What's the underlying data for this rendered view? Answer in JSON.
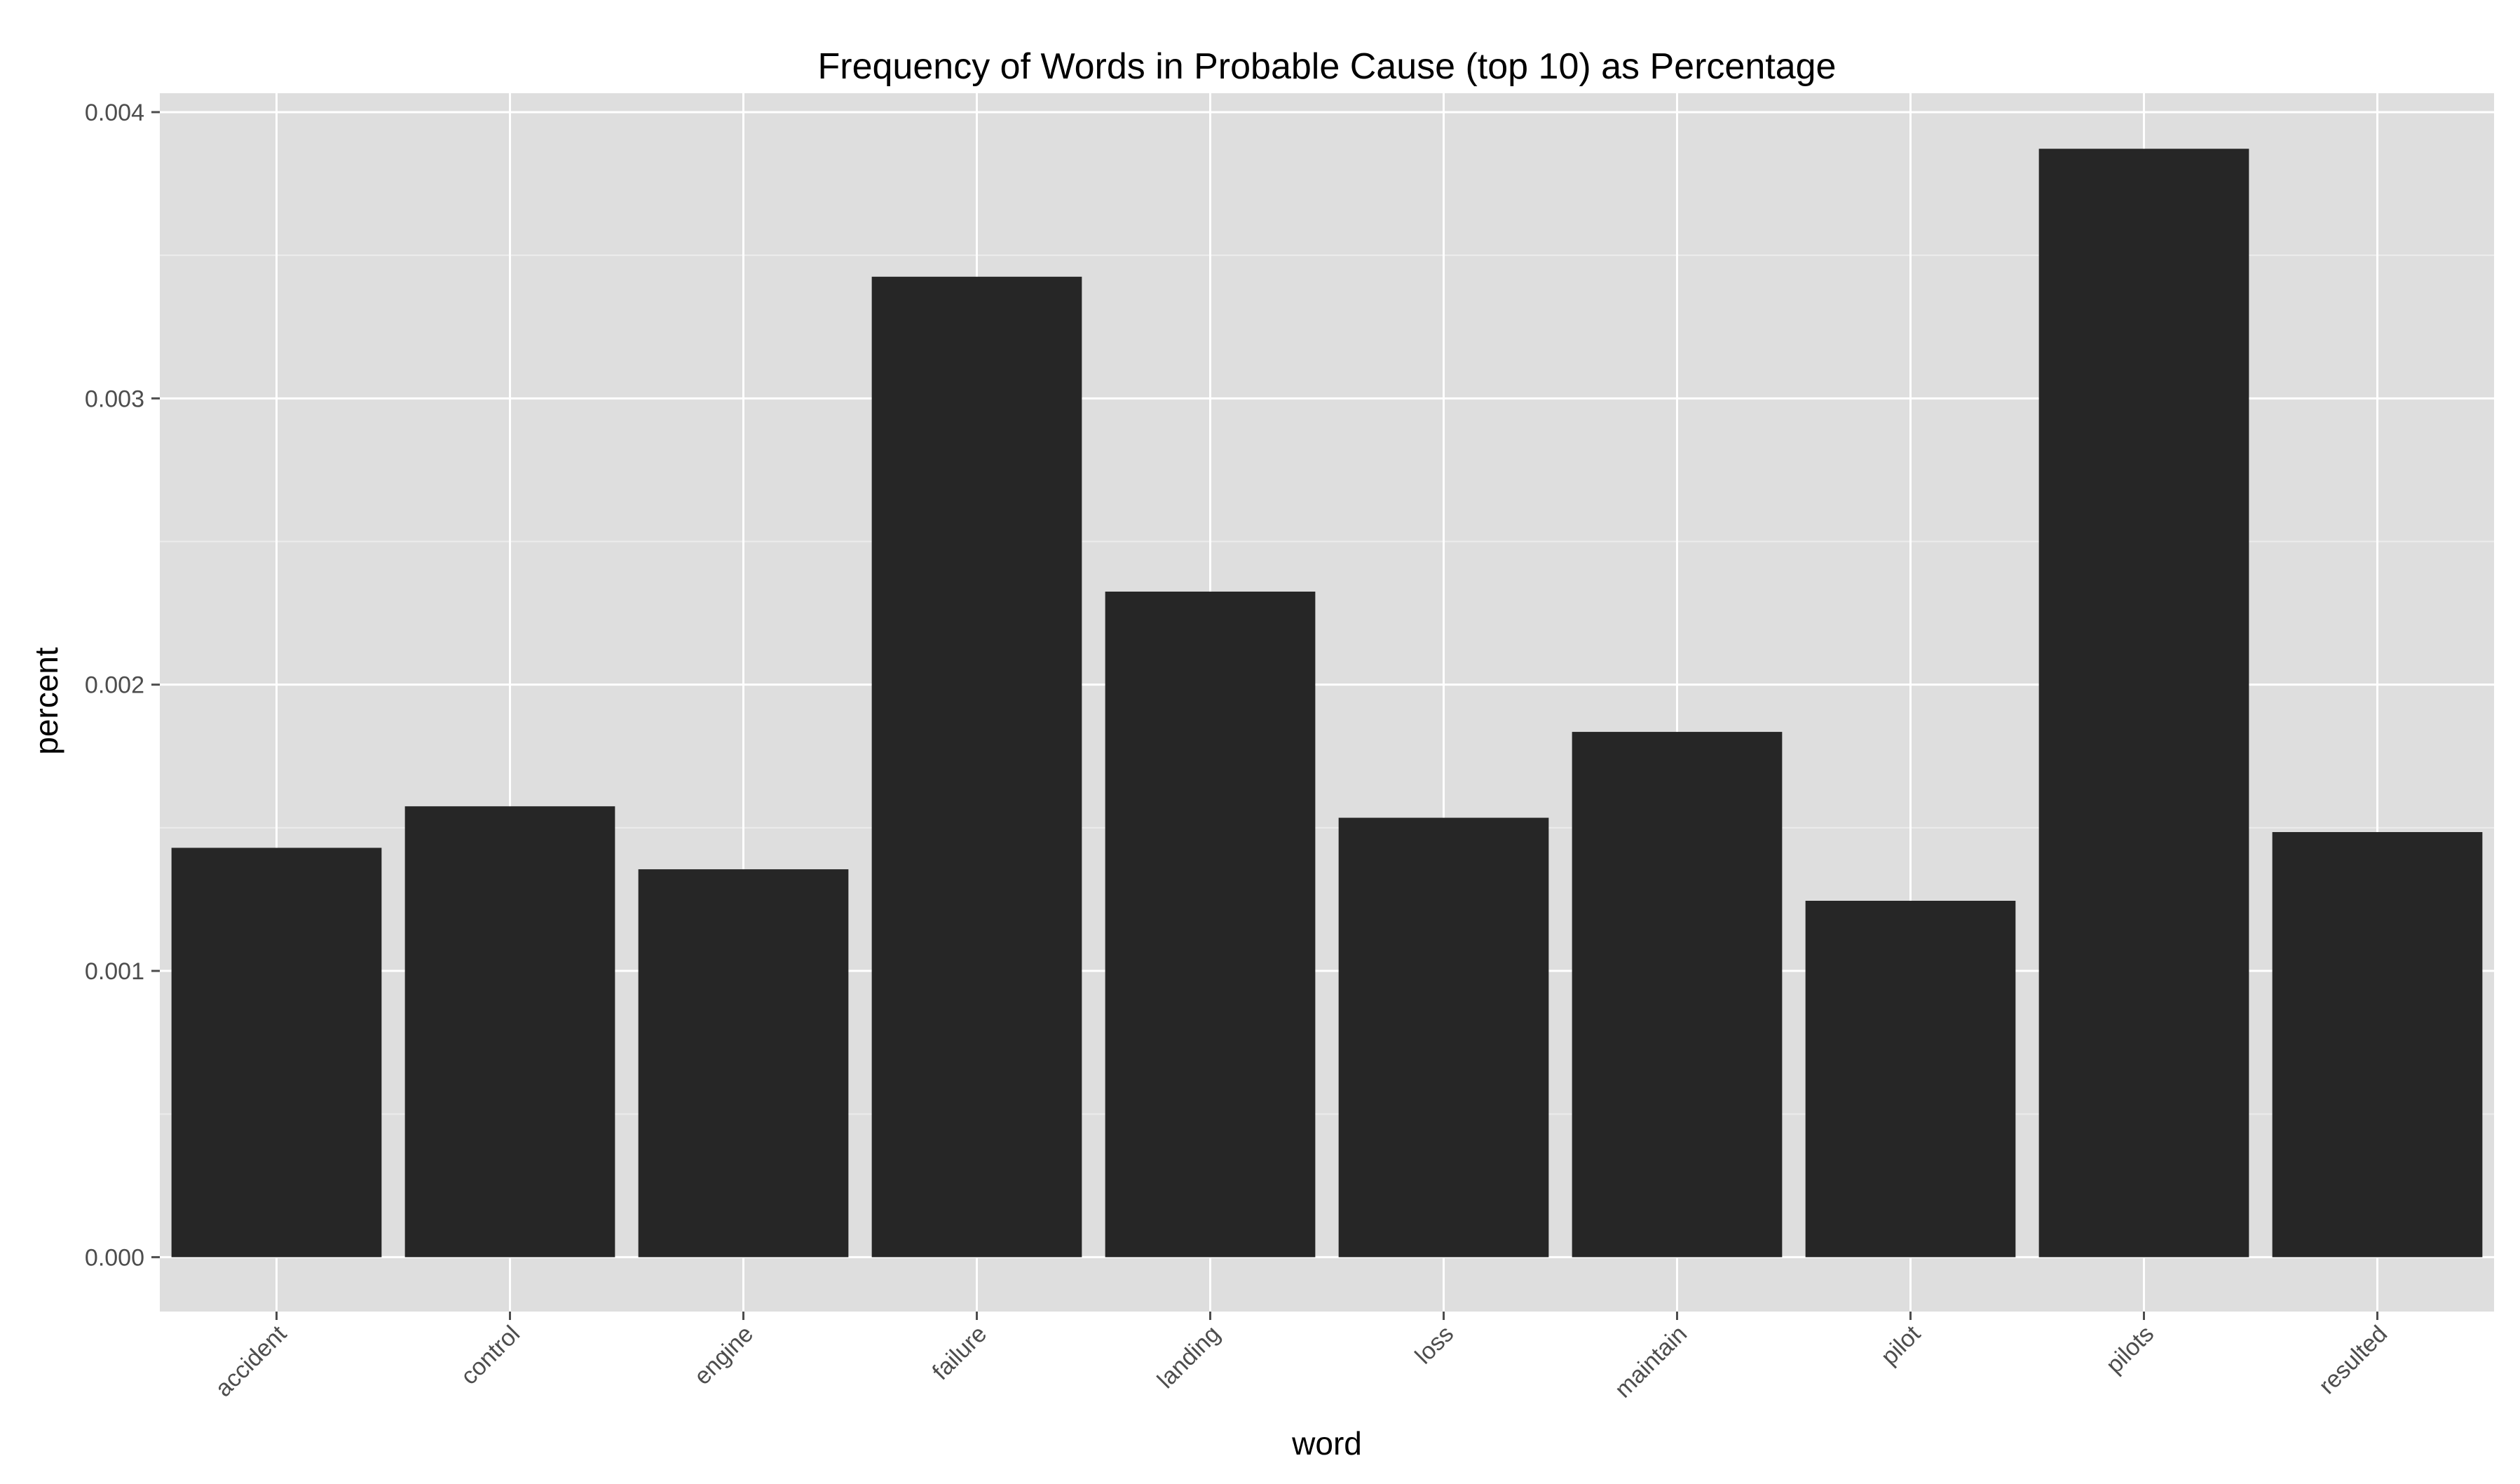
{
  "chart_data": {
    "type": "bar",
    "title": "Frequency of Words in Probable Cause (top 10) as Percentage",
    "xlabel": "word",
    "ylabel": "percent",
    "categories": [
      "accident",
      "control",
      "engine",
      "failure",
      "landing",
      "loss",
      "maintain",
      "pilot",
      "pilots",
      "resulted"
    ],
    "values": [
      0.00143,
      0.001575,
      0.001355,
      0.003425,
      0.002325,
      0.001535,
      0.001835,
      0.001245,
      0.003872,
      0.001485
    ],
    "ylim": [
      -0.00019,
      0.004066
    ],
    "yticks": [
      "0.000",
      "0.001",
      "0.002",
      "0.003",
      "0.004"
    ],
    "ytick_values": [
      0,
      0.001,
      0.002,
      0.003,
      0.004
    ],
    "grid": true,
    "legend": "none",
    "colors": {
      "bar": "#262626",
      "panel": "#dedede",
      "grid_major": "#ffffff",
      "grid_minor": "#ececec"
    }
  }
}
